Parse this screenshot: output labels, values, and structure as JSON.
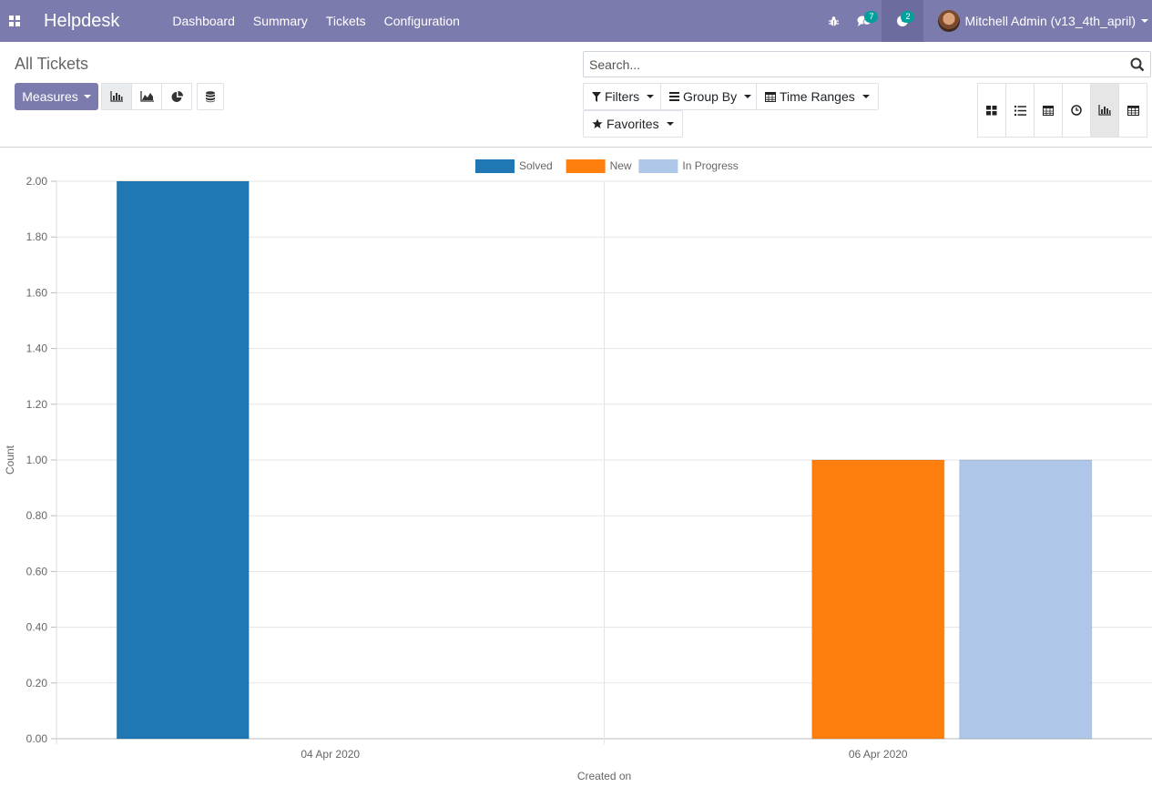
{
  "navbar": {
    "brand": "Helpdesk",
    "menu": [
      "Dashboard",
      "Summary",
      "Tickets",
      "Configuration"
    ],
    "chat_count": "7",
    "activity_count": "2",
    "user_name": "Mitchell Admin (v13_4th_april)"
  },
  "control": {
    "breadcrumb": "All Tickets",
    "measures_label": "Measures",
    "search_placeholder": "Search...",
    "filters_label": "Filters",
    "groupby_label": "Group By",
    "timeranges_label": "Time Ranges",
    "favorites_label": "Favorites"
  },
  "colors": {
    "navbar": "#7c7bad",
    "solved": "#1f77b4",
    "new": "#ff7f0e",
    "in_progress": "#aec7e8"
  },
  "chart_data": {
    "type": "bar",
    "categories": [
      "04 Apr 2020",
      "06 Apr 2020"
    ],
    "series": [
      {
        "name": "Solved",
        "values": [
          2,
          0
        ]
      },
      {
        "name": "New",
        "values": [
          0,
          1
        ]
      },
      {
        "name": "In Progress",
        "values": [
          0,
          1
        ]
      }
    ],
    "xlabel": "Created on",
    "ylabel": "Count",
    "ylim": [
      0,
      2
    ],
    "yticks": [
      "0.00",
      "0.20",
      "0.40",
      "0.60",
      "0.80",
      "1.00",
      "1.20",
      "1.40",
      "1.60",
      "1.80",
      "2.00"
    ],
    "legend_position": "top",
    "grid": true
  }
}
